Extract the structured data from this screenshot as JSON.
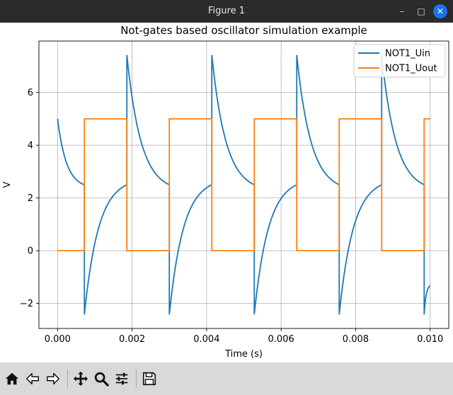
{
  "window": {
    "title": "Figure 1",
    "minimize_label": "–",
    "maximize_label": "□",
    "close_label": "✕"
  },
  "toolbar": {
    "tools": [
      {
        "name": "home-icon"
      },
      {
        "name": "back-arrow-icon"
      },
      {
        "name": "forward-arrow-icon"
      },
      {
        "name": "pan-move-icon"
      },
      {
        "name": "zoom-magnifier-icon"
      },
      {
        "name": "configure-subplots-icon"
      },
      {
        "name": "save-floppy-icon"
      }
    ]
  },
  "chart_data": {
    "type": "line",
    "title": "Not-gates based oscillator simulation example",
    "xlabel": "Time (s)",
    "ylabel": "V",
    "xlim": [
      -0.0005,
      0.0105
    ],
    "ylim": [
      -2.95,
      7.95
    ],
    "xticks": [
      0.0,
      0.002,
      0.004,
      0.006,
      0.008,
      0.01
    ],
    "xtick_labels": [
      "0.000",
      "0.002",
      "0.004",
      "0.006",
      "0.008",
      "0.010"
    ],
    "yticks": [
      -2,
      0,
      2,
      4,
      6
    ],
    "ytick_labels": [
      "−2",
      "0",
      "2",
      "4",
      "6"
    ],
    "grid": true,
    "legend": "top-right",
    "series": [
      {
        "name": "NOT1_Uin",
        "color": "#1f77b4",
        "x": [
          0.0,
          0.00072,
          0.00072,
          0.00186,
          0.00186,
          0.003,
          0.003,
          0.00414,
          0.00414,
          0.00528,
          0.00528,
          0.00642,
          0.00642,
          0.00756,
          0.00756,
          0.0087,
          0.0087,
          0.00984,
          0.00984,
          0.01
        ],
        "y": [
          5.0,
          2.5,
          -2.42,
          2.5,
          7.42,
          2.5,
          -2.42,
          2.5,
          7.42,
          2.5,
          -2.42,
          2.5,
          7.42,
          2.5,
          -2.42,
          2.5,
          7.42,
          2.5,
          -2.42,
          -1.33
        ],
        "segment_shape": [
          "exp",
          "jump",
          "exp",
          "jump",
          "exp",
          "jump",
          "exp",
          "jump",
          "exp",
          "jump",
          "exp",
          "jump",
          "exp",
          "jump",
          "exp",
          "jump",
          "exp",
          "jump",
          "exp"
        ]
      },
      {
        "name": "NOT1_Uout",
        "color": "#ff7f0e",
        "x": [
          0.0,
          0.00072,
          0.00072,
          0.00186,
          0.00186,
          0.003,
          0.003,
          0.00414,
          0.00414,
          0.00528,
          0.00528,
          0.00642,
          0.00642,
          0.00756,
          0.00756,
          0.0087,
          0.0087,
          0.00984,
          0.00984,
          0.01
        ],
        "y": [
          0,
          0,
          5,
          5,
          0,
          0,
          5,
          5,
          0,
          0,
          5,
          5,
          0,
          0,
          5,
          5,
          0,
          0,
          5,
          5
        ]
      }
    ]
  }
}
